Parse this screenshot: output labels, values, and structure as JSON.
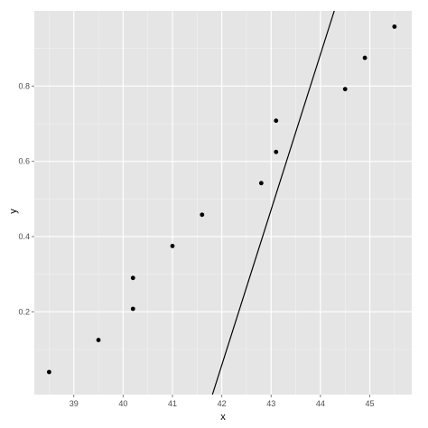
{
  "chart_data": {
    "type": "scatter",
    "title": "",
    "xlabel": "x",
    "ylabel": "y",
    "xlim": [
      38.2,
      45.85
    ],
    "ylim": [
      -0.02,
      1.0
    ],
    "x_ticks": [
      39,
      40,
      41,
      42,
      43,
      44,
      45
    ],
    "y_ticks": [
      0.2,
      0.4,
      0.6,
      0.8
    ],
    "y_tick_labels": [
      "0.2",
      "0.4",
      "0.6",
      "0.8"
    ],
    "grid": true,
    "legend": "none",
    "colors": {
      "panel": "#e5e5e5",
      "grid_major": "#ffffff",
      "grid_minor": "#f2f2f2",
      "point": "#000000",
      "line": "#000000"
    },
    "points": [
      {
        "x": 38.5,
        "y": 0.04
      },
      {
        "x": 39.5,
        "y": 0.125
      },
      {
        "x": 40.2,
        "y": 0.29
      },
      {
        "x": 40.2,
        "y": 0.208
      },
      {
        "x": 41.0,
        "y": 0.375
      },
      {
        "x": 41.6,
        "y": 0.458
      },
      {
        "x": 42.8,
        "y": 0.542
      },
      {
        "x": 43.1,
        "y": 0.625
      },
      {
        "x": 43.1,
        "y": 0.708
      },
      {
        "x": 44.5,
        "y": 0.792
      },
      {
        "x": 44.9,
        "y": 0.875
      },
      {
        "x": 45.5,
        "y": 0.958
      }
    ],
    "line": {
      "x": [
        41.81,
        44.28
      ],
      "y": [
        -0.02,
        1.0
      ]
    }
  }
}
